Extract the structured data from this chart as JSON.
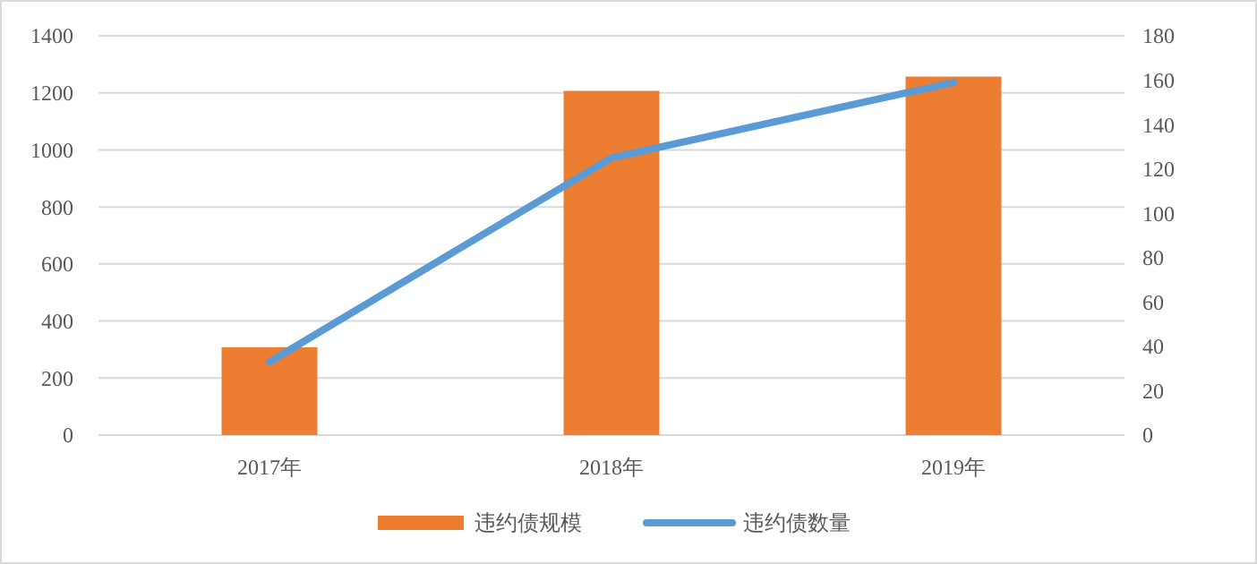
{
  "chart_data": {
    "type": "bar",
    "categories": [
      "2017年",
      "2018年",
      "2019年"
    ],
    "series": [
      {
        "name": "违约债规模",
        "color": "#ed7d31",
        "values": [
          308,
          1207,
          1257
        ]
      },
      {
        "name": "违约债数量",
        "type": "line",
        "axis": "y2",
        "color": "#5b9bd5",
        "values": [
          33,
          125,
          159
        ]
      }
    ],
    "ylim": [
      0,
      1400
    ],
    "yticks": [
      0,
      200,
      400,
      600,
      800,
      1000,
      1200,
      1400
    ],
    "y2lim": [
      0,
      180
    ],
    "y2ticks": [
      0,
      20,
      40,
      60,
      80,
      100,
      120,
      140,
      160,
      180
    ],
    "grid": "y",
    "legend": "bottom",
    "marker": "none"
  }
}
